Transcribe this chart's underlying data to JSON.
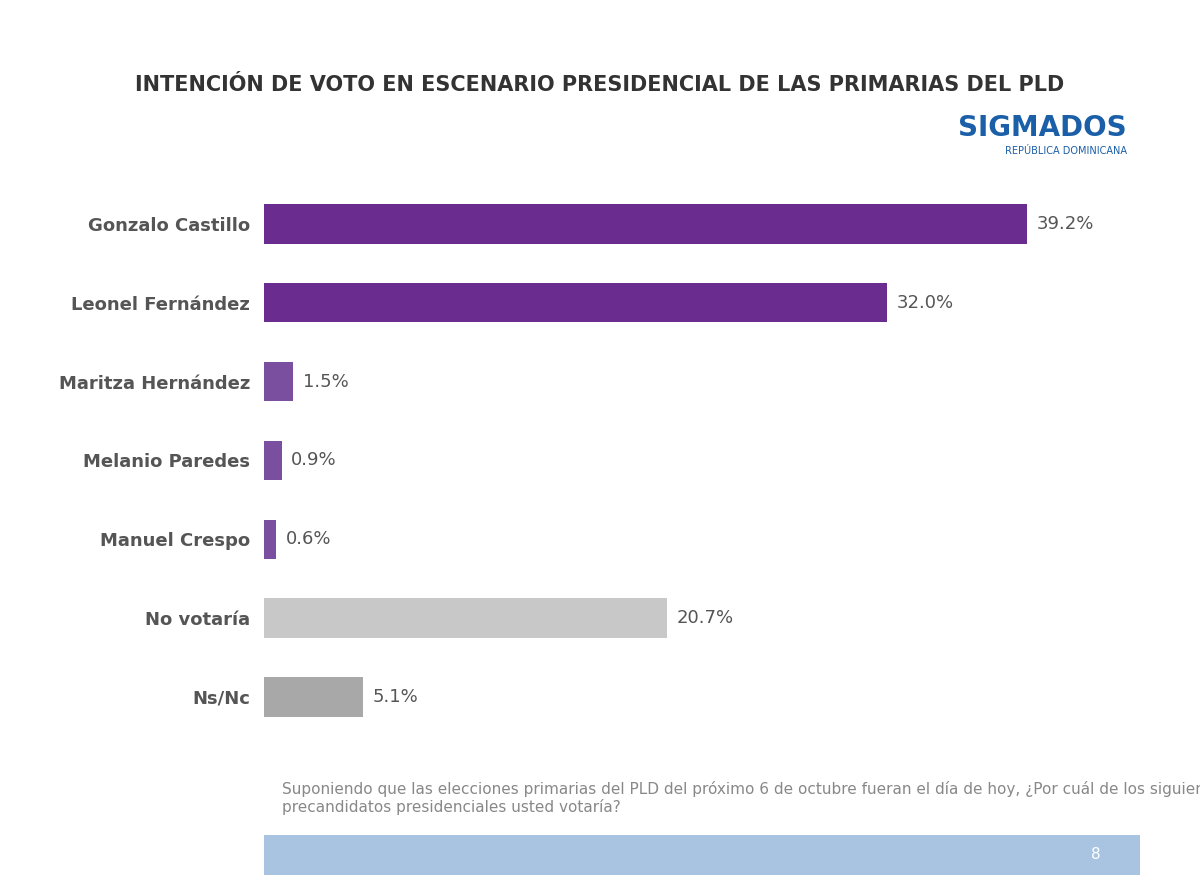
{
  "title": "INTENCIÓN DE VOTO EN ESCENARIO PRESIDENCIAL DE LAS PRIMARIAS DEL PLD",
  "categories": [
    "Gonzalo Castillo",
    "Leonel Fernández",
    "Maritza Hernández",
    "Melanio Paredes",
    "Manuel Crespo",
    "No votaría",
    "Ns/Nc"
  ],
  "values": [
    39.2,
    32.0,
    1.5,
    0.9,
    0.6,
    20.7,
    5.1
  ],
  "labels": [
    "39.2%",
    "32.0%",
    "1.5%",
    "0.9%",
    "0.6%",
    "20.7%",
    "5.1%"
  ],
  "colors": [
    "#6a2d8f",
    "#6a2d8f",
    "#7b4fa0",
    "#7b4fa0",
    "#7b4fa0",
    "#c8c8c8",
    "#a8a8a8"
  ],
  "background_color": "#ffffff",
  "header_color": "#a8c4e0",
  "footer_color": "#a8c4e0",
  "title_fontsize": 15,
  "label_fontsize": 13,
  "value_fontsize": 13,
  "footer_text": "Suponiendo que las elecciones primarias del PLD del próximo 6 de octubre fueran el día de hoy, ¿Por cuál de los siguientes\nprecandidatos presidenciales usted votaría?",
  "footer_fontsize": 11,
  "page_number": "8",
  "sigma_dos_text": "SIGMADOS",
  "sigma_dos_sub": "REPÚBLICA DOMINICANA",
  "xlim": [
    0,
    45
  ]
}
